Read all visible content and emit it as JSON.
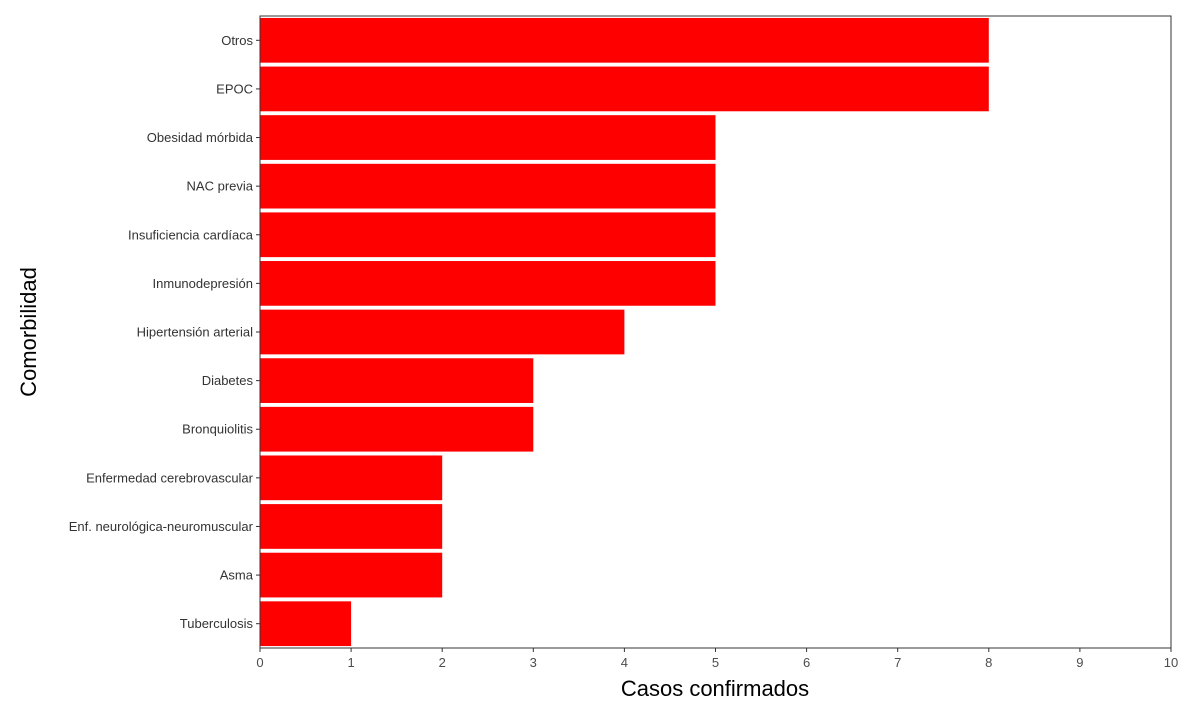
{
  "chart_data": {
    "type": "bar",
    "orientation": "horizontal",
    "title": "",
    "xlabel": "Casos confirmados",
    "ylabel": "Comorbilidad",
    "categories": [
      "Otros",
      "EPOC",
      "Obesidad mórbida",
      "NAC previa",
      "Insuficiencia cardíaca",
      "Inmunodepresión",
      "Hipertensión arterial",
      "Diabetes",
      "Bronquiolitis",
      "Enfermedad cerebrovascular",
      "Enf. neurológica-neuromuscular",
      "Asma",
      "Tuberculosis"
    ],
    "values": [
      8,
      8,
      5,
      5,
      5,
      5,
      4,
      3,
      3,
      2,
      2,
      2,
      1
    ],
    "xlim": [
      0,
      10
    ],
    "xticks": [
      "0",
      "1",
      "2",
      "3",
      "4",
      "5",
      "6",
      "7",
      "8",
      "9",
      "10"
    ],
    "bar_color": "#ff0000",
    "grid": false,
    "legend": "none"
  }
}
